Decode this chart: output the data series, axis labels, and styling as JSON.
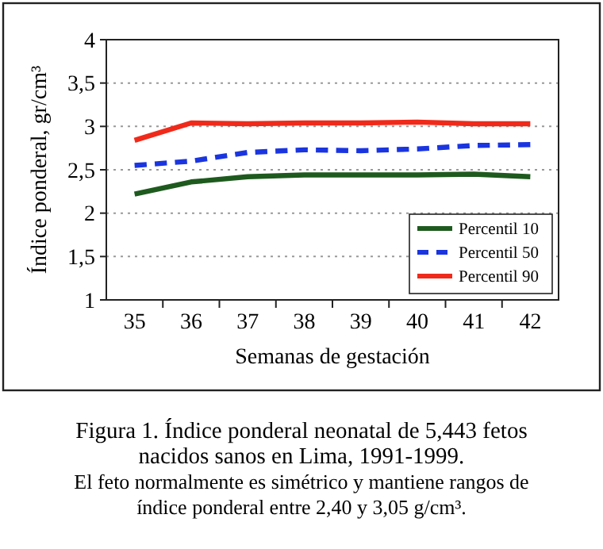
{
  "chart_data": {
    "type": "line",
    "title": "Figura 1. Índice ponderal neonatal de 5,443 fetos nacidos sanos en Lima, 1991-1999.",
    "xlabel": "Semanas de gestación",
    "ylabel": "Índice ponderal, gr/cm³",
    "categories": [
      "35",
      "36",
      "37",
      "38",
      "39",
      "40",
      "41",
      "42"
    ],
    "series": [
      {
        "name": "Percentil 10",
        "color": "#1e5a1e",
        "line_style": "solid",
        "values": [
          2.22,
          2.36,
          2.42,
          2.44,
          2.44,
          2.44,
          2.45,
          2.42
        ]
      },
      {
        "name": "Percentil 50",
        "color": "#1a35e0",
        "line_style": "dashed",
        "values": [
          2.55,
          2.6,
          2.7,
          2.73,
          2.72,
          2.74,
          2.78,
          2.79
        ]
      },
      {
        "name": "Percentil 90",
        "color": "#f02a1a",
        "line_style": "solid",
        "values": [
          2.84,
          3.04,
          3.03,
          3.04,
          3.04,
          3.05,
          3.03,
          3.03
        ]
      }
    ],
    "ylim": [
      1,
      4
    ],
    "yticks": [
      1,
      {
        "value": 1.5,
        "label": "1,5"
      },
      2,
      {
        "value": 2.5,
        "label": "2,5"
      },
      3,
      {
        "value": 3.5,
        "label": "3,5"
      },
      4
    ],
    "grid": "y",
    "legend": "bottom right",
    "marker": "none",
    "annotations": [
      "El feto normalmente es simétrico y mantiene rangos de índice ponderal entre 2,40 y  3,05 g/cm³."
    ]
  }
}
